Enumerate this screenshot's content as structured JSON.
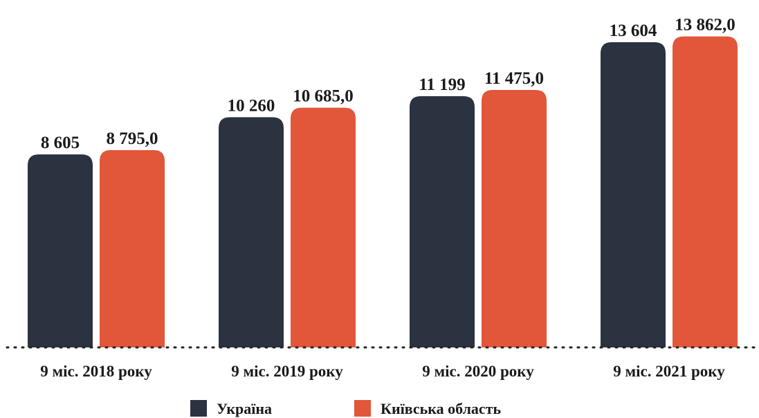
{
  "chart_data": {
    "type": "bar",
    "categories": [
      "9 міс. 2018 року",
      "9 міс. 2019 року",
      "9 міс. 2020 року",
      "9 міс. 2021 року"
    ],
    "series": [
      {
        "name": "Україна",
        "color": "#2b3240",
        "values": [
          8605,
          10260,
          11199,
          13604
        ],
        "labels": [
          "8 605",
          "10 260",
          "11 199",
          "13 604"
        ]
      },
      {
        "name": "Київська область",
        "color": "#e2563a",
        "values": [
          8795.0,
          10685.0,
          11475.0,
          13862.0
        ],
        "labels": [
          "8 795,0",
          "10 685,0",
          "11 475,0",
          "13 862,0"
        ]
      }
    ],
    "ylim": [
      0,
      14500
    ],
    "grid": false,
    "legend_position": "bottom"
  }
}
